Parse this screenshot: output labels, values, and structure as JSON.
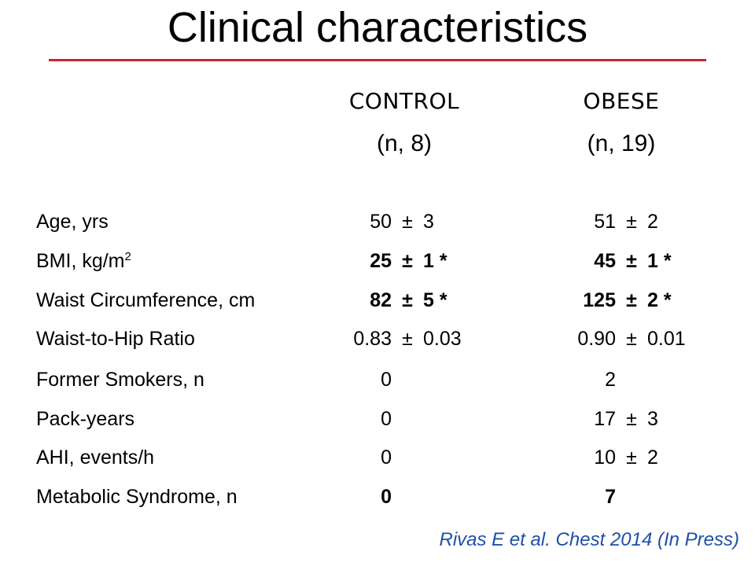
{
  "colors": {
    "rule": "#c8262c",
    "citation": "#1f4fa8"
  },
  "title": "Clinical characteristics",
  "columns": [
    {
      "name": "CONTROL",
      "n": "(n, 8)"
    },
    {
      "name": "OBESE",
      "n": "(n, 19)"
    }
  ],
  "rows": [
    {
      "label": "Age, yrs",
      "bold": false,
      "control": {
        "value": "50",
        "pm": "±",
        "sd": "3"
      },
      "obese": {
        "value": "51",
        "pm": "±",
        "sd": "2"
      }
    },
    {
      "label": "BMI, kg/m",
      "label_sup": "2",
      "bold": true,
      "control": {
        "value": "25",
        "pm": "±",
        "sd": "1 *"
      },
      "obese": {
        "value": "45",
        "pm": "±",
        "sd": "1 *"
      }
    },
    {
      "label": "Waist Circumference, cm",
      "bold": true,
      "control": {
        "value": "82",
        "pm": "±",
        "sd": "5 *"
      },
      "obese": {
        "value": "125",
        "pm": "±",
        "sd": "2 *"
      }
    },
    {
      "label": "Waist-to-Hip Ratio",
      "bold": false,
      "control": {
        "value": "0.83",
        "pm": "±",
        "sd": "0.03"
      },
      "obese": {
        "value": "0.90",
        "pm": "±",
        "sd": "0.01"
      }
    },
    {
      "label": "Former Smokers, n",
      "bold": false,
      "control": {
        "value": "0",
        "pm": "",
        "sd": ""
      },
      "obese": {
        "value": "2",
        "pm": "",
        "sd": ""
      }
    },
    {
      "label": "Pack-years",
      "bold": false,
      "control": {
        "value": "0",
        "pm": "",
        "sd": ""
      },
      "obese": {
        "value": "17",
        "pm": "±",
        "sd": "3"
      }
    },
    {
      "label": "AHI, events/h",
      "bold": false,
      "control": {
        "value": "0",
        "pm": "",
        "sd": ""
      },
      "obese": {
        "value": "10",
        "pm": "±",
        "sd": "2"
      }
    },
    {
      "label": "Metabolic Syndrome, n",
      "bold": true,
      "control": {
        "value": "0",
        "pm": "",
        "sd": ""
      },
      "obese": {
        "value": "7",
        "pm": "",
        "sd": ""
      }
    }
  ],
  "citation": "Rivas E et al. Chest 2014 (In Press)"
}
